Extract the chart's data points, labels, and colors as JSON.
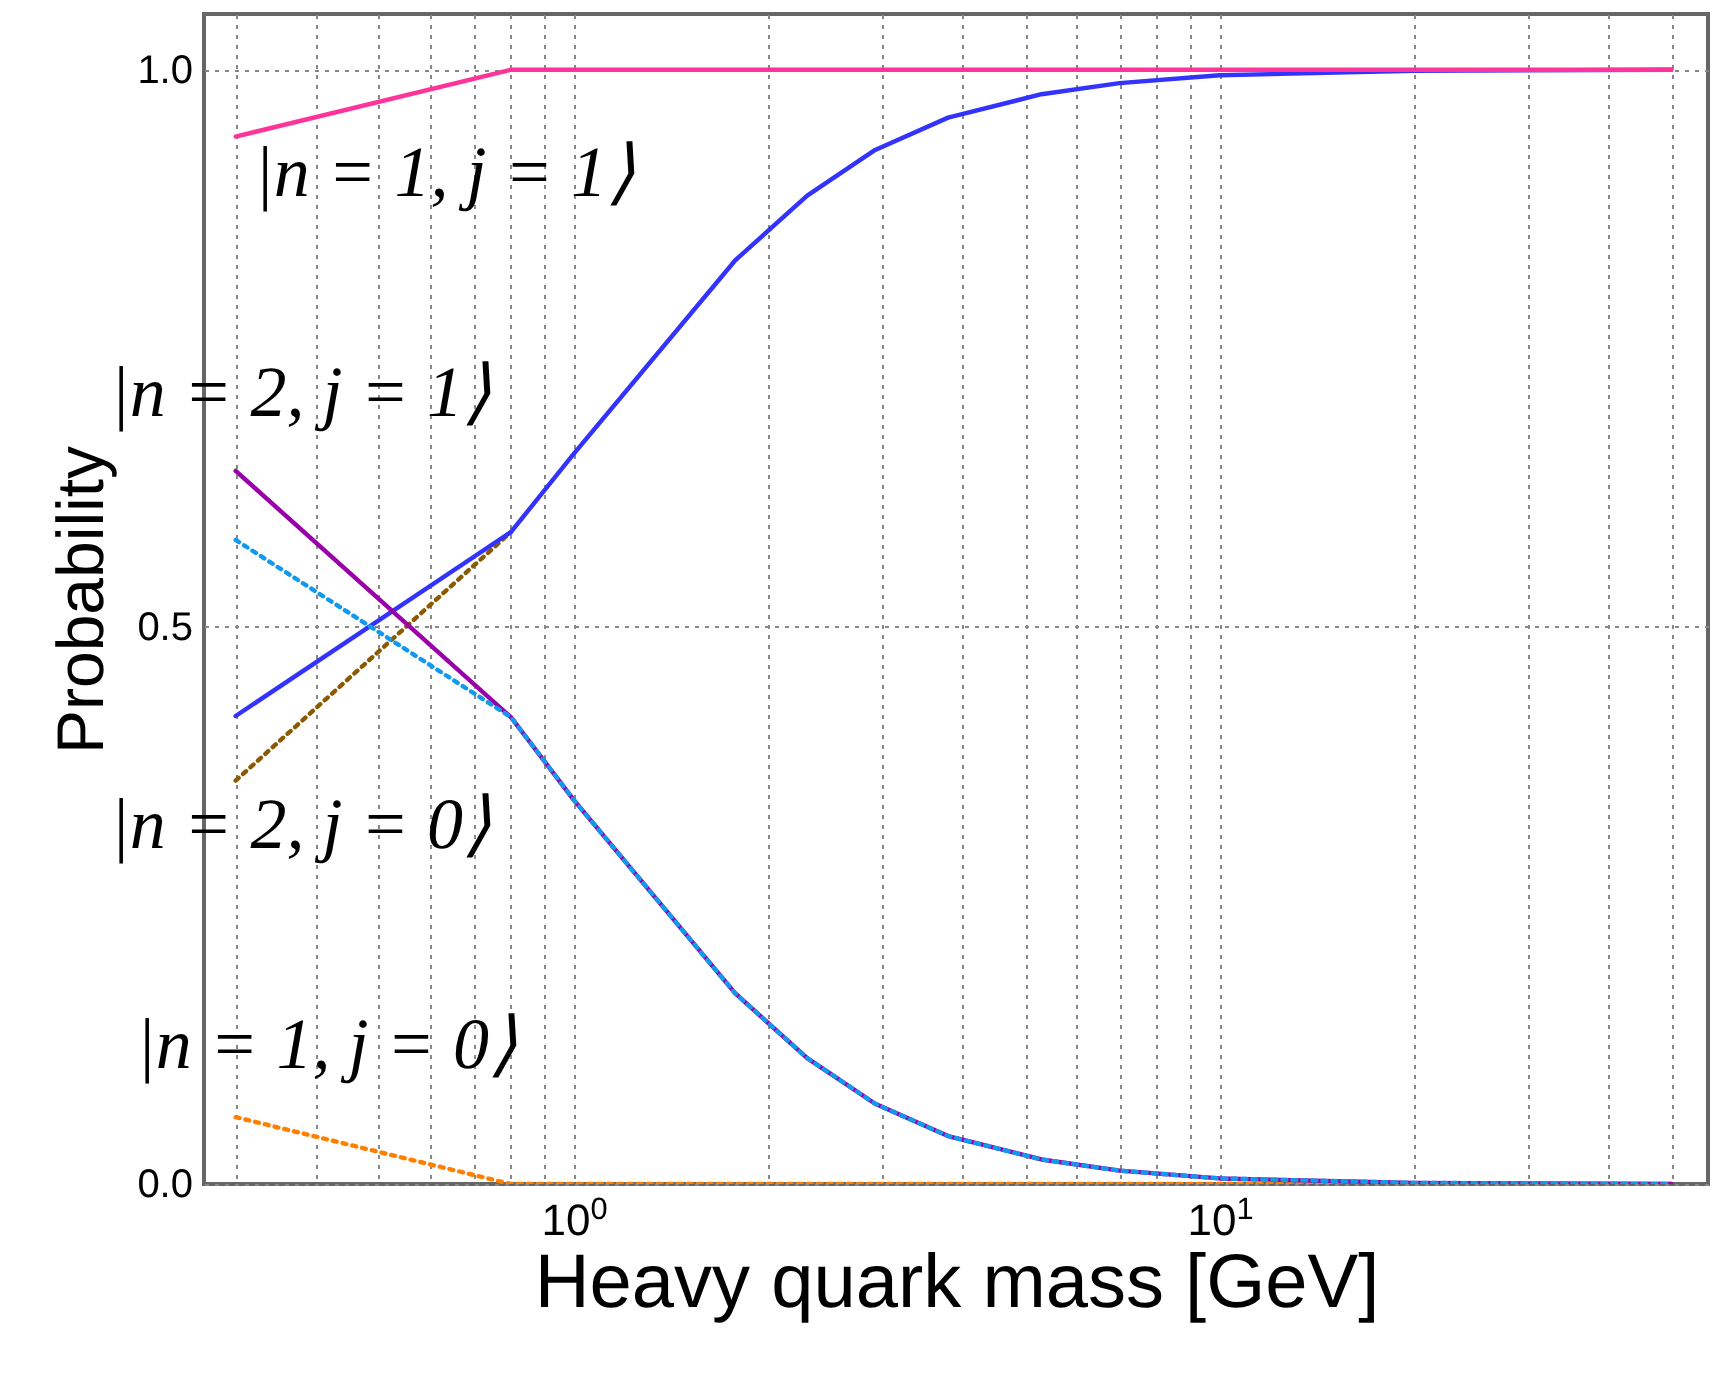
{
  "chart_data": {
    "type": "line",
    "xlabel": "Heavy quark mass [GeV]",
    "ylabel": "Probability",
    "annotations": [
      "|n = 1, j = 1⟩",
      "|n = 2, j = 1⟩",
      "|n = 2, j = 0⟩",
      "|n = 1, j = 0⟩"
    ],
    "log": "x",
    "grid": true,
    "xlim": [
      0.268,
      57
    ],
    "ylim": [
      0,
      1.05
    ],
    "xticks": [
      {
        "value": 0.3,
        "label": null
      },
      {
        "value": 0.4,
        "label": null
      },
      {
        "value": 0.5,
        "label": null
      },
      {
        "value": 0.6,
        "label": null
      },
      {
        "value": 0.7,
        "label": null
      },
      {
        "value": 0.8,
        "label": null
      },
      {
        "value": 0.9,
        "label": null
      },
      {
        "value": 1,
        "label": "10$^{0}$"
      },
      {
        "value": 2,
        "label": null
      },
      {
        "value": 3,
        "label": null
      },
      {
        "value": 4,
        "label": null
      },
      {
        "value": 5,
        "label": null
      },
      {
        "value": 6,
        "label": null
      },
      {
        "value": 7,
        "label": null
      },
      {
        "value": 8,
        "label": null
      },
      {
        "value": 9,
        "label": null
      },
      {
        "value": 10,
        "label": "10$^{1}$"
      },
      {
        "value": 20,
        "label": null
      },
      {
        "value": 30,
        "label": null
      },
      {
        "value": 40,
        "label": null
      },
      {
        "value": 50,
        "label": null
      }
    ],
    "yticks": [
      {
        "value": 0,
        "label": "0.0"
      },
      {
        "value": 0.5,
        "label": "0.5"
      },
      {
        "value": 1,
        "label": "1.0"
      }
    ],
    "series": [
      {
        "color": "#ff8000",
        "line_style": "dotted",
        "x": [
          0.3,
          0.8,
          50
        ],
        "values": [
          0.06,
          0,
          0
        ]
      },
      {
        "color": "#8b5a00",
        "line_style": "dotted",
        "x": [
          0.3,
          0.8
        ],
        "values": [
          0.362,
          0.585
        ]
      },
      {
        "color": "#3333ff",
        "line_style": "solid",
        "x": [
          0.3,
          0.8,
          1,
          1.78,
          2.3,
          2.93,
          3.8,
          5.3,
          7,
          10,
          20,
          50
        ],
        "values": [
          0.42,
          0.585,
          0.655,
          0.829,
          0.887,
          0.928,
          0.957,
          0.978,
          0.988,
          0.995,
          0.999,
          1.0
        ]
      },
      {
        "color": "#9900aa",
        "line_style": "solid",
        "x": [
          0.3,
          0.8,
          1,
          1.78,
          2.3,
          2.93,
          3.8,
          5.3,
          7,
          10,
          20,
          50
        ],
        "values": [
          0.64,
          0.419,
          0.345,
          0.171,
          0.113,
          0.072,
          0.043,
          0.022,
          0.012,
          0.005,
          0.001,
          0
        ]
      },
      {
        "color": "#1199ee",
        "line_style": "dotted",
        "x": [
          0.3,
          0.8,
          1,
          1.78,
          2.3,
          2.93,
          3.8,
          5.3,
          7,
          10,
          20,
          50
        ],
        "values": [
          0.578,
          0.419,
          0.345,
          0.171,
          0.113,
          0.072,
          0.043,
          0.022,
          0.012,
          0.005,
          0.001,
          0
        ]
      },
      {
        "color": "#ff3399",
        "line_style": "solid",
        "x": [
          0.3,
          0.8,
          50
        ],
        "values": [
          0.94,
          1.0,
          1.0
        ]
      }
    ]
  }
}
